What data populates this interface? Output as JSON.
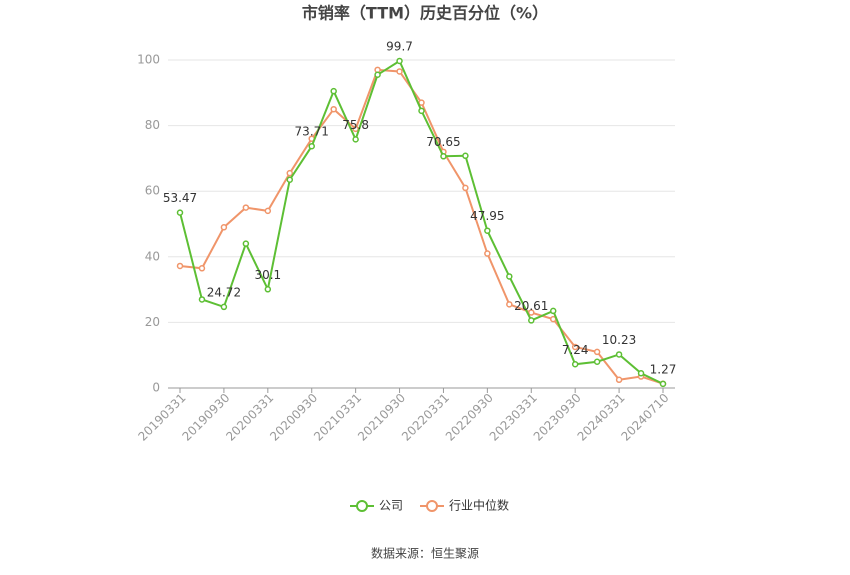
{
  "chart_data": {
    "type": "line",
    "title": "市销率（TTM）历史百分位（%）",
    "categories": [
      "20190331",
      null,
      "20190930",
      null,
      "20200331",
      null,
      "20200930",
      null,
      "20210331",
      null,
      "20210930",
      null,
      "20220331",
      null,
      "20220930",
      null,
      "20230331",
      null,
      "20230930",
      null,
      "20240331",
      null,
      "20240710"
    ],
    "series": [
      {
        "name": "公司",
        "color": "#5dbf34",
        "values": [
          53.47,
          27,
          24.72,
          44,
          30.1,
          63.5,
          73.71,
          90.5,
          75.8,
          95.5,
          99.7,
          84.5,
          70.65,
          70.8,
          47.95,
          34,
          20.61,
          23.5,
          7.24,
          8,
          10.23,
          4.5,
          1.27
        ]
      },
      {
        "name": "行业中位数",
        "color": "#f0956a",
        "values": [
          37.2,
          36.5,
          49,
          55,
          54,
          65.5,
          76,
          85,
          79,
          97,
          96.5,
          87,
          72,
          61,
          41,
          25.5,
          23,
          21,
          12.5,
          11,
          2.5,
          3.5,
          1.3
        ]
      }
    ],
    "ylim": [
      0,
      100
    ],
    "yticks": [
      0,
      20,
      40,
      60,
      80,
      100
    ],
    "grid": true,
    "source": "数据来源：恒生聚源"
  }
}
